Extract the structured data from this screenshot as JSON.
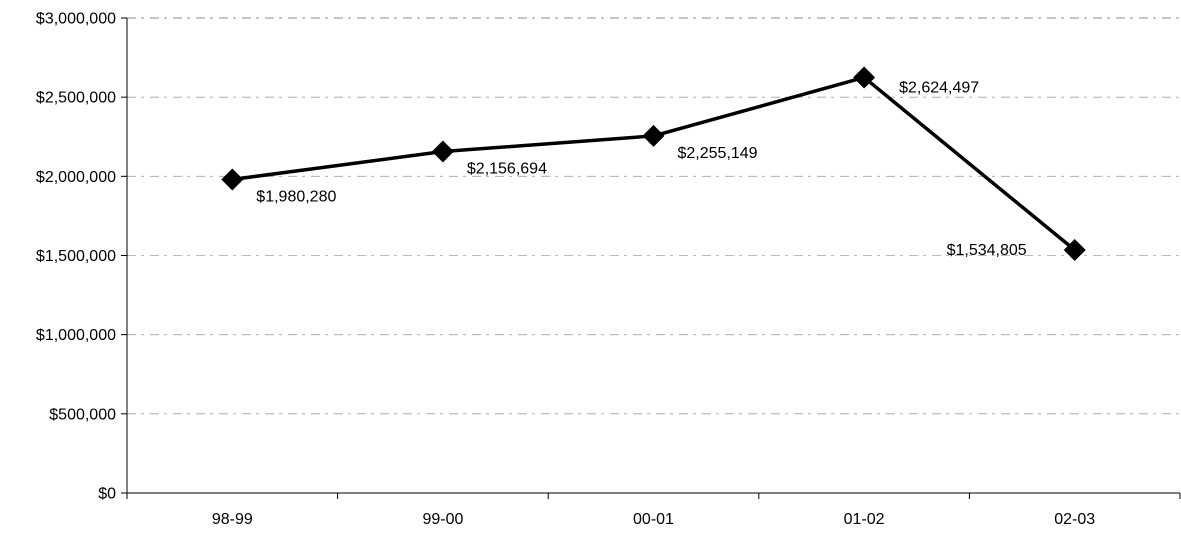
{
  "chart_data": {
    "type": "line",
    "categories": [
      "98-99",
      "99-00",
      "00-01",
      "01-02",
      "02-03"
    ],
    "series": [
      {
        "values": [
          1980280,
          2156694,
          2255149,
          2624497,
          1534805
        ],
        "labels": [
          "$1,980,280",
          "$2,156,694",
          "$2,255,149",
          "$2,624,497",
          "$1,534,805"
        ]
      }
    ],
    "y_ticks": [
      0,
      500000,
      1000000,
      1500000,
      2000000,
      2500000,
      3000000
    ],
    "y_tick_labels": [
      "$0",
      "$500,000",
      "$1,000,000",
      "$1,500,000",
      "$2,000,000",
      "$2,500,000",
      "$3,000,000"
    ],
    "ylim": [
      0,
      3000000
    ],
    "grid": true,
    "legend": "none",
    "marker": "diamond",
    "colors": {
      "line": "#000000",
      "marker": "#000000",
      "grid": "#555555",
      "axis": "#000000"
    }
  }
}
